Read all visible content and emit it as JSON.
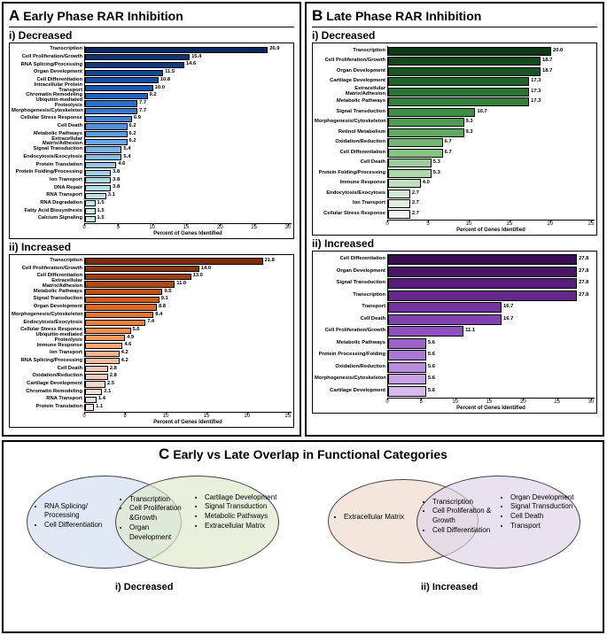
{
  "panelA": {
    "title_prefix": "A",
    "title": "Early Phase RAR Inhibition",
    "chart1": {
      "subtitle": "i) Decreased",
      "xmax": 30,
      "xtick_step": 5,
      "xlabel": "Percent of Genes Identified",
      "colors_start": "#0a2a5e",
      "colors_end": "#c4f0e4",
      "rows": [
        {
          "label": "Transcription",
          "v": 26.9,
          "c": "#0a2a5e"
        },
        {
          "label": "Cell Proliferation/Growth",
          "v": 15.4,
          "c": "#0d3470"
        },
        {
          "label": "RNA Splicing/Processing",
          "v": 14.6,
          "c": "#103d82"
        },
        {
          "label": "Organ Development",
          "v": 11.5,
          "c": "#134794"
        },
        {
          "label": "Cell Differentiation",
          "v": 10.8,
          "c": "#1650a5"
        },
        {
          "label": "Intracellular Protein Transport",
          "v": 10.0,
          "c": "#1a5ab6"
        },
        {
          "label": "Chromatin Remodeling",
          "v": 9.2,
          "c": "#2064c2"
        },
        {
          "label": "Ubiquitin-mediated Proteolysis",
          "v": 7.7,
          "c": "#2b6fcb"
        },
        {
          "label": "Morphogenesis/Cytoskeleton",
          "v": 7.7,
          "c": "#377ad2"
        },
        {
          "label": "Cellular Stress Response",
          "v": 6.9,
          "c": "#4485d8"
        },
        {
          "label": "Cell Death",
          "v": 6.2,
          "c": "#5290dd"
        },
        {
          "label": "Metabolic Pathways",
          "v": 6.2,
          "c": "#609be1"
        },
        {
          "label": "Extracellular Matrix/Adhesion",
          "v": 6.2,
          "c": "#6ea6e5"
        },
        {
          "label": "Signal Transduction",
          "v": 5.4,
          "c": "#7cb1e8"
        },
        {
          "label": "Endocytosis/Exocytosis",
          "v": 5.4,
          "c": "#8abceb"
        },
        {
          "label": "Protein Translation",
          "v": 4.6,
          "c": "#96c6ec"
        },
        {
          "label": "Protein Folding/Processing",
          "v": 3.8,
          "c": "#a1cfec"
        },
        {
          "label": "Ion Transport",
          "v": 3.8,
          "c": "#abd7eb"
        },
        {
          "label": "DNA Repair",
          "v": 3.8,
          "c": "#b4ddea"
        },
        {
          "label": "RNA Transport",
          "v": 3.1,
          "c": "#bbe2e9"
        },
        {
          "label": "RNA Degradation",
          "v": 1.5,
          "c": "#c1e7e9"
        },
        {
          "label": "Fatty Acid Biosynthesis",
          "v": 1.5,
          "c": "#c4ebe7"
        },
        {
          "label": "Calcium Signaling",
          "v": 1.5,
          "c": "#c4f0e4"
        }
      ]
    },
    "chart2": {
      "subtitle": "ii) Increased",
      "xmax": 25,
      "xtick_step": 5,
      "xlabel": "Percent of Genes Identified",
      "rows": [
        {
          "label": "Transcription",
          "v": 21.8,
          "c": "#7a2e0a"
        },
        {
          "label": "Cell Proliferation/Growth",
          "v": 14.0,
          "c": "#8c360c"
        },
        {
          "label": "Cell Differentiation",
          "v": 13.0,
          "c": "#9e3f0f"
        },
        {
          "label": "Extracellular Matrix/Adhesion",
          "v": 11.0,
          "c": "#b04812"
        },
        {
          "label": "Metabolic Pathways",
          "v": 9.5,
          "c": "#c15216"
        },
        {
          "label": "Signal Transduction",
          "v": 9.1,
          "c": "#d05d1b"
        },
        {
          "label": "Organ Development",
          "v": 8.8,
          "c": "#dd6822"
        },
        {
          "label": "Morphogenesis/Cytoskeleton",
          "v": 8.4,
          "c": "#e6752f"
        },
        {
          "label": "Endocytosis/Exocytosis",
          "v": 7.4,
          "c": "#ec823f"
        },
        {
          "label": "Cellular Stress Response",
          "v": 5.6,
          "c": "#f08f50"
        },
        {
          "label": "Ubiquitin-mediated Proteolysis",
          "v": 4.9,
          "c": "#f29c62"
        },
        {
          "label": "Immune Response",
          "v": 4.6,
          "c": "#f4a875"
        },
        {
          "label": "Ion Transport",
          "v": 4.2,
          "c": "#f5b388"
        },
        {
          "label": "RNA Splicing/Processing",
          "v": 4.2,
          "c": "#f6bd9a"
        },
        {
          "label": "Cell Death",
          "v": 2.8,
          "c": "#f7c6ab"
        },
        {
          "label": "Oxidation/Reduction",
          "v": 2.8,
          "c": "#f7cebb"
        },
        {
          "label": "Cartilage Development",
          "v": 2.5,
          "c": "#f8d5c9"
        },
        {
          "label": "Chromatin Remodeling",
          "v": 2.1,
          "c": "#f8dcd5"
        },
        {
          "label": "RNA Transport",
          "v": 1.4,
          "c": "#f8e2e0"
        },
        {
          "label": "Protein Translation",
          "v": 1.1,
          "c": "#f8e7e9"
        }
      ]
    }
  },
  "panelB": {
    "title_prefix": "B",
    "title": "Late Phase RAR Inhibition",
    "chart1": {
      "subtitle": "i) Decreased",
      "xmax": 25,
      "xtick_step": 5,
      "xlabel": "Percent of Genes Identified",
      "rows": [
        {
          "label": "Transcription",
          "v": 20.0,
          "c": "#0d3a16"
        },
        {
          "label": "Cell Proliferation/Growth",
          "v": 18.7,
          "c": "#12481c"
        },
        {
          "label": "Organ Development",
          "v": 18.7,
          "c": "#185623"
        },
        {
          "label": "Cartilage Development",
          "v": 17.3,
          "c": "#1f642a"
        },
        {
          "label": "Extracellular Matrix/Adhesion",
          "v": 17.3,
          "c": "#287232"
        },
        {
          "label": "Metabolic Pathways",
          "v": 17.3,
          "c": "#32803b"
        },
        {
          "label": "Signal Transduction",
          "v": 10.7,
          "c": "#3f8e46"
        },
        {
          "label": "Morphogenesis/Cytoskeleton",
          "v": 9.3,
          "c": "#4e9c52"
        },
        {
          "label": "Retinol Metabolism",
          "v": 9.3,
          "c": "#5fa960"
        },
        {
          "label": "Oxidation/Reduction",
          "v": 6.7,
          "c": "#72b671"
        },
        {
          "label": "Cell Differentiation",
          "v": 6.7,
          "c": "#86c283"
        },
        {
          "label": "Cell Death",
          "v": 5.3,
          "c": "#9acd97"
        },
        {
          "label": "Protein Folding/Processing",
          "v": 5.3,
          "c": "#aed7ab"
        },
        {
          "label": "Immune Response",
          "v": 4.0,
          "c": "#c1e0bf"
        },
        {
          "label": "Endocytosis/Exocytosis",
          "v": 2.7,
          "c": "#d2e8d2"
        },
        {
          "label": "Ion Transport",
          "v": 2.7,
          "c": "#e1efe3"
        },
        {
          "label": "Cellular Stress Response",
          "v": 2.7,
          "c": "#eef5f1"
        }
      ]
    },
    "chart2": {
      "subtitle": "ii) Increased",
      "xmax": 30,
      "xtick_step": 5,
      "xlabel": "Percent of Genes Identified",
      "rows": [
        {
          "label": "Cell Differentiation",
          "v": 27.8,
          "c": "#3a0d52"
        },
        {
          "label": "Organ Development",
          "v": 27.8,
          "c": "#481565"
        },
        {
          "label": "Signal Transduction",
          "v": 27.8,
          "c": "#561e78"
        },
        {
          "label": "Transcription",
          "v": 27.8,
          "c": "#64288b"
        },
        {
          "label": "Transport",
          "v": 16.7,
          "c": "#72349d"
        },
        {
          "label": "Cell Death",
          "v": 16.7,
          "c": "#8042ad"
        },
        {
          "label": "Cell Proliferation/Growth",
          "v": 11.1,
          "c": "#8e52bc"
        },
        {
          "label": "Metabolic Pathways",
          "v": 5.6,
          "c": "#9c64c9"
        },
        {
          "label": "Protein Processing/Folding",
          "v": 5.6,
          "c": "#aa78d4"
        },
        {
          "label": "Oxidation/Reduction",
          "v": 5.6,
          "c": "#b88ddd"
        },
        {
          "label": "Morphogenesis/Cytoskeleton",
          "v": 5.6,
          "c": "#c6a3e5"
        },
        {
          "label": "Cartilage Development",
          "v": 5.6,
          "c": "#d4baec"
        }
      ]
    }
  },
  "panelC": {
    "title_prefix": "C",
    "title": "Early vs Late Overlap in Functional Categories",
    "venn1": {
      "label": "i) Decreased",
      "left_color": "#d9e4f2",
      "right_color": "#dde9ca",
      "left_items": [
        "RNA Splicing/\nProcessing",
        "Cell Differentiation"
      ],
      "mid_items": [
        "Transcription",
        "Cell Proliferation\n&Growth",
        "Organ Development"
      ],
      "right_items": [
        "Cartilage Development",
        "Signal Transduction",
        "Metabolic Pathways",
        "Extracellular Matrix"
      ]
    },
    "venn2": {
      "label": "ii) Increased",
      "left_color": "#f2e0d4",
      "right_color": "#dcd4e9",
      "left_items": [
        "Extracellular Matrix"
      ],
      "mid_items": [
        "Transcription",
        "Cell Proliferation &\nGrowth",
        "Cell Differentiation"
      ],
      "right_items": [
        "Organ Development",
        "Signal Transduction",
        "Cell Death",
        "Transport"
      ]
    }
  }
}
